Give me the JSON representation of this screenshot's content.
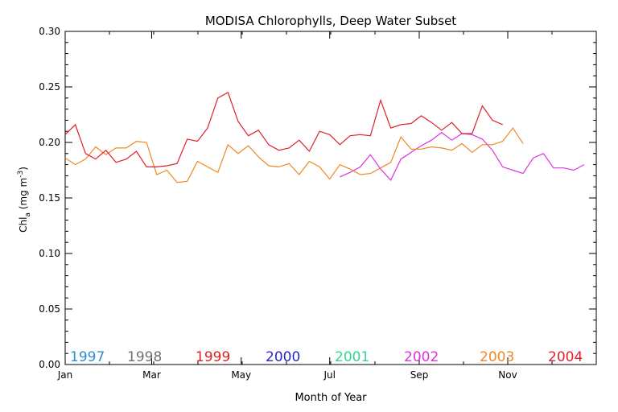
{
  "chart_data": {
    "type": "line",
    "title": "MODISA Chlorophylls, Deep Water Subset",
    "xlabel": "Month of Year",
    "ylabel": "Chl_a (mg m^-3)",
    "ylabel_parts": {
      "main": "Chl",
      "sub": "a",
      "units_open": " (mg m",
      "sup": "-3",
      "units_close": ")"
    },
    "ylim": [
      0.0,
      0.3
    ],
    "yticks": [
      "0.00",
      "0.05",
      "0.10",
      "0.15",
      "0.20",
      "0.25",
      "0.30"
    ],
    "xticks": [
      {
        "label": "Jan",
        "week": 0
      },
      {
        "label": "Mar",
        "week": 8.5
      },
      {
        "label": "May",
        "week": 17.3
      },
      {
        "label": "Jul",
        "week": 26
      },
      {
        "label": "Sep",
        "week": 34.8
      },
      {
        "label": "Nov",
        "week": 43.5
      }
    ],
    "xlim_week": [
      0,
      52.2
    ],
    "grid": false,
    "legend_position": "bottom-inside",
    "legend": [
      {
        "name": "1997",
        "color": "#2a8fd0"
      },
      {
        "name": "1998",
        "color": "#707070"
      },
      {
        "name": "1999",
        "color": "#e02020"
      },
      {
        "name": "2000",
        "color": "#2828c8"
      },
      {
        "name": "2001",
        "color": "#30d890"
      },
      {
        "name": "2002",
        "color": "#e030e0"
      },
      {
        "name": "2003",
        "color": "#f08820"
      },
      {
        "name": "2004",
        "color": "#e0202c"
      }
    ],
    "series": [
      {
        "name": "2002",
        "color": "#e030e0",
        "start_week": 27.0,
        "step_weeks": 1.0,
        "values": [
          0.169,
          0.173,
          0.178,
          0.189,
          0.176,
          0.166,
          0.185,
          0.191,
          0.197,
          0.202,
          0.209,
          0.202,
          0.208,
          0.207,
          0.203,
          0.193,
          0.178,
          0.175,
          0.172,
          0.186,
          0.19,
          0.177,
          0.177,
          0.175,
          0.18
        ]
      },
      {
        "name": "2003",
        "color": "#f08820",
        "start_week": 0,
        "step_weeks": 1.0,
        "values": [
          0.186,
          0.18,
          0.185,
          0.196,
          0.189,
          0.195,
          0.195,
          0.201,
          0.2,
          0.171,
          0.175,
          0.164,
          0.165,
          0.183,
          0.178,
          0.173,
          0.198,
          0.19,
          0.197,
          0.187,
          0.179,
          0.178,
          0.181,
          0.171,
          0.183,
          0.178,
          0.167,
          0.18,
          0.176,
          0.171,
          0.172,
          0.177,
          0.182,
          0.205,
          0.194,
          0.194,
          0.196,
          0.195,
          0.193,
          0.199,
          0.191,
          0.198,
          0.198,
          0.201,
          0.213,
          0.199
        ]
      },
      {
        "name": "2004",
        "color": "#e0202c",
        "start_week": 0,
        "step_weeks": 1.0,
        "values": [
          0.207,
          0.216,
          0.19,
          0.185,
          0.193,
          0.182,
          0.185,
          0.192,
          0.178,
          0.178,
          0.179,
          0.181,
          0.203,
          0.201,
          0.213,
          0.24,
          0.245,
          0.219,
          0.206,
          0.211,
          0.198,
          0.193,
          0.195,
          0.202,
          0.192,
          0.21,
          0.207,
          0.198,
          0.206,
          0.207,
          0.206,
          0.238,
          0.213,
          0.216,
          0.217,
          0.224,
          0.218,
          0.211,
          0.218,
          0.208,
          0.208,
          0.233,
          0.22,
          0.216
        ]
      }
    ]
  }
}
